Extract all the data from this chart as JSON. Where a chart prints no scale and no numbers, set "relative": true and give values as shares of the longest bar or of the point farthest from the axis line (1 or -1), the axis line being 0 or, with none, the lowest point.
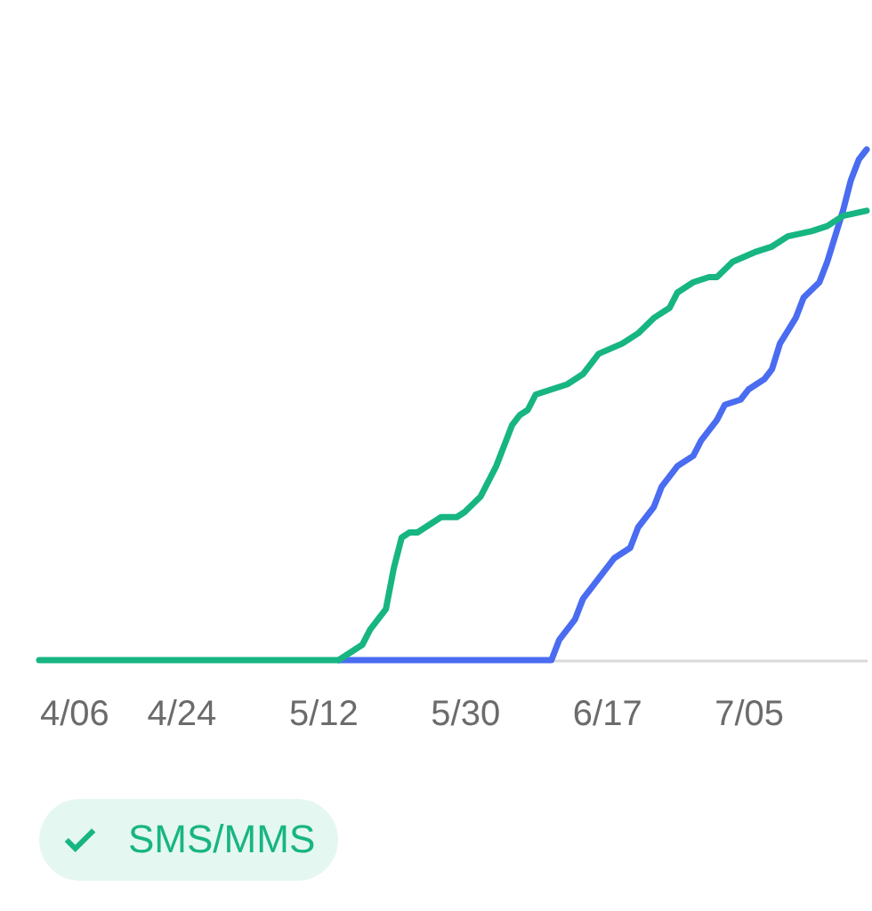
{
  "chart_data": {
    "type": "line",
    "relative": true,
    "xlim": [
      "--04-06",
      "--07-20"
    ],
    "xticks": [
      {
        "value": "--04-06",
        "label": "4/06"
      },
      {
        "value": "--04-24",
        "label": "4/24"
      },
      {
        "value": "--05-12",
        "label": "5/12"
      },
      {
        "value": "--05-30",
        "label": "5/30"
      },
      {
        "value": "--06-17",
        "label": "6/17"
      },
      {
        "value": "--07-05",
        "label": "7/05"
      }
    ],
    "legend": "bottom",
    "series": [
      {
        "name": "SMS/MMS",
        "color": "#17b582",
        "x": [
          "--04-06",
          "--05-14",
          "--05-16",
          "--05-17",
          "--05-18",
          "--05-20",
          "--05-21",
          "--05-22",
          "--05-23",
          "--05-24",
          "--05-26",
          "--05-27",
          "--05-29",
          "--05-30",
          "--06-01",
          "--06-02",
          "--06-03",
          "--06-04",
          "--06-05",
          "--06-06",
          "--06-07",
          "--06-08",
          "--06-10",
          "--06-12",
          "--06-14",
          "--06-16",
          "--06-19",
          "--06-21",
          "--06-23",
          "--06-25",
          "--06-26",
          "--06-27",
          "--06-28",
          "--06-30",
          "--07-01",
          "--07-03",
          "--07-06",
          "--07-08",
          "--07-10",
          "--07-13",
          "--07-15",
          "--07-17",
          "--07-20"
        ],
        "values": [
          0,
          0,
          0.02,
          0.03,
          0.06,
          0.1,
          0.18,
          0.24,
          0.25,
          0.25,
          0.27,
          0.28,
          0.28,
          0.29,
          0.32,
          0.35,
          0.38,
          0.42,
          0.46,
          0.48,
          0.49,
          0.52,
          0.53,
          0.54,
          0.56,
          0.6,
          0.62,
          0.64,
          0.67,
          0.69,
          0.72,
          0.73,
          0.74,
          0.75,
          0.75,
          0.78,
          0.8,
          0.81,
          0.83,
          0.84,
          0.85,
          0.87,
          0.88
        ]
      },
      {
        "color": "#4a6cf0",
        "x": [
          "--05-14",
          "--06-10",
          "--06-11",
          "--06-13",
          "--06-14",
          "--06-16",
          "--06-17",
          "--06-18",
          "--06-20",
          "--06-21",
          "--06-23",
          "--06-24",
          "--06-26",
          "--06-28",
          "--06-29",
          "--07-01",
          "--07-02",
          "--07-04",
          "--07-05",
          "--07-07",
          "--07-08",
          "--07-09",
          "--07-11",
          "--07-12",
          "--07-14",
          "--07-15",
          "--07-16",
          "--07-17",
          "--07-18",
          "--07-19",
          "--07-20"
        ],
        "values": [
          0,
          0,
          0.04,
          0.08,
          0.12,
          0.16,
          0.18,
          0.2,
          0.22,
          0.26,
          0.3,
          0.34,
          0.38,
          0.4,
          0.43,
          0.47,
          0.5,
          0.51,
          0.53,
          0.55,
          0.57,
          0.62,
          0.67,
          0.71,
          0.74,
          0.78,
          0.83,
          0.88,
          0.94,
          0.98,
          1
        ]
      }
    ]
  }
}
